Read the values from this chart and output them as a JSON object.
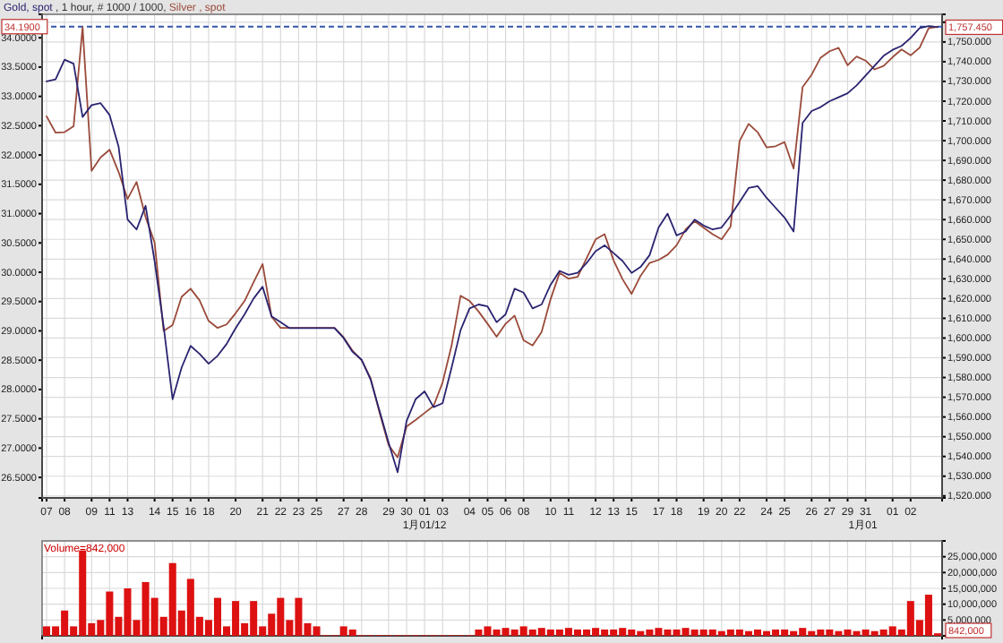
{
  "chart_data": [
    {
      "type": "line",
      "title": ", 1 hour, # 1000 / 1000,",
      "legend": "top left",
      "grid": true,
      "categories": [
        "07",
        null,
        "08",
        null,
        null,
        "09",
        null,
        "11",
        null,
        "13",
        null,
        null,
        "14",
        null,
        "15",
        null,
        "16",
        null,
        "18",
        null,
        null,
        "20",
        null,
        null,
        "21",
        null,
        "22",
        null,
        "23",
        null,
        "25",
        null,
        null,
        "27",
        null,
        "28",
        null,
        null,
        "29",
        null,
        "30",
        null,
        "01",
        null,
        "03",
        null,
        null,
        "04",
        null,
        "05",
        null,
        "06",
        null,
        "08",
        null,
        null,
        "10",
        null,
        "11",
        null,
        null,
        "12",
        null,
        "13",
        null,
        "15",
        null,
        null,
        "17",
        null,
        "18",
        null,
        null,
        "19",
        null,
        "20",
        null,
        "22",
        null,
        null,
        "24",
        null,
        "25",
        null,
        null,
        "26",
        null,
        "27",
        null,
        "29",
        null,
        "31",
        null,
        null,
        "01",
        null,
        "02",
        null,
        null,
        null
      ],
      "ylim": [
        26.15,
        34.4
      ],
      "y2lim": [
        1519,
        1764
      ],
      "yticks": [
        {
          "value": 26.5,
          "label": "26.5000"
        },
        {
          "value": 27,
          "label": "27.0000"
        },
        {
          "value": 27.5,
          "label": "27.5000"
        },
        {
          "value": 28,
          "label": "28.0000"
        },
        {
          "value": 28.5,
          "label": "28.5000"
        },
        {
          "value": 29,
          "label": "29.0000"
        },
        {
          "value": 29.5,
          "label": "29.5000"
        },
        {
          "value": 30,
          "label": "30.0000"
        },
        {
          "value": 30.5,
          "label": "30.5000"
        },
        {
          "value": 31,
          "label": "31.0000"
        },
        {
          "value": 31.5,
          "label": "31.5000"
        },
        {
          "value": 32,
          "label": "32.0000"
        },
        {
          "value": 32.5,
          "label": "32.5000"
        },
        {
          "value": 33,
          "label": "33.0000"
        },
        {
          "value": 33.5,
          "label": "33.5000"
        },
        {
          "value": 34,
          "label": "34.0000"
        }
      ],
      "y2ticks": [
        {
          "value": 1520,
          "label": "1,520.000"
        },
        {
          "value": 1530,
          "label": "1,530.000"
        },
        {
          "value": 1540,
          "label": "1,540.000"
        },
        {
          "value": 1550,
          "label": "1,550.000"
        },
        {
          "value": 1560,
          "label": "1,560.000"
        },
        {
          "value": 1570,
          "label": "1,570.000"
        },
        {
          "value": 1580,
          "label": "1,580.000"
        },
        {
          "value": 1590,
          "label": "1,590.000"
        },
        {
          "value": 1600,
          "label": "1,600.000"
        },
        {
          "value": 1610,
          "label": "1,610.000"
        },
        {
          "value": 1620,
          "label": "1,620.000"
        },
        {
          "value": 1630,
          "label": "1,630.000"
        },
        {
          "value": 1640,
          "label": "1,640.000"
        },
        {
          "value": 1650,
          "label": "1,650.000"
        },
        {
          "value": 1660,
          "label": "1,660.000"
        },
        {
          "value": 1670,
          "label": "1,670.000"
        },
        {
          "value": 1680,
          "label": "1,680.000"
        },
        {
          "value": 1690,
          "label": "1,690.000"
        },
        {
          "value": 1700,
          "label": "1,700.000"
        },
        {
          "value": 1710,
          "label": "1,710.000"
        },
        {
          "value": 1720,
          "label": "1,720.000"
        },
        {
          "value": 1730,
          "label": "1,730.000"
        },
        {
          "value": 1740,
          "label": "1,740.000"
        },
        {
          "value": 1750,
          "label": "1,750.000"
        },
        {
          "value": 1760,
          "label": null
        }
      ],
      "ref_lines": [
        {
          "axis": "y",
          "value": 34.19,
          "label": "34.1900",
          "color": "#3355aa",
          "line_style": "dashed"
        }
      ],
      "annotations": [
        "1月01/12",
        "1月01"
      ],
      "series": [
        {
          "name": "Silver , spot",
          "color": "#9a4a3a",
          "values": [
            32.66,
            32.38,
            32.39,
            32.49,
            34.18,
            31.73,
            31.96,
            32.09,
            31.71,
            31.25,
            31.54,
            30.94,
            30.51,
            29.0,
            29.1,
            29.58,
            29.72,
            29.52,
            29.17,
            29.05,
            29.11,
            29.3,
            29.51,
            29.83,
            30.14,
            29.24,
            29.05,
            29.05,
            29.05,
            29.05,
            29.05,
            29.05,
            29.05,
            28.89,
            28.66,
            28.5,
            28.19,
            27.6,
            27.05,
            26.84,
            27.37,
            27.48,
            27.6,
            27.72,
            28.12,
            28.75,
            29.6,
            29.51,
            29.33,
            29.12,
            28.9,
            29.12,
            29.26,
            28.84,
            28.75,
            28.98,
            29.54,
            29.99,
            29.89,
            29.92,
            30.24,
            30.56,
            30.65,
            30.2,
            29.88,
            29.63,
            29.94,
            30.16,
            30.21,
            30.3,
            30.46,
            30.73,
            30.87,
            30.76,
            30.65,
            30.56,
            30.78,
            32.24,
            32.53,
            32.39,
            32.13,
            32.15,
            32.22,
            31.77,
            33.16,
            33.37,
            33.66,
            33.77,
            33.83,
            33.53,
            33.68,
            33.61,
            33.46,
            33.52,
            33.67,
            33.8,
            33.7,
            33.83,
            34.16,
            34.19
          ]
        },
        {
          "name": "Gold, spot",
          "axis": "y2",
          "color": "#2a2470",
          "values": [
            1730,
            1731,
            1741,
            1739,
            1712,
            1718,
            1719,
            1713,
            1697,
            1660,
            1655,
            1667,
            1639,
            1606,
            1569,
            1585,
            1596,
            1592,
            1587,
            1591,
            1597,
            1605,
            1612,
            1620,
            1626,
            1611,
            1608,
            1605,
            1605,
            1605,
            1605,
            1605,
            1605,
            1600,
            1593,
            1589,
            1579,
            1563,
            1547,
            1532,
            1558,
            1569,
            1573,
            1565,
            1567,
            1585,
            1604,
            1615,
            1617,
            1616,
            1608,
            1612,
            1625,
            1623,
            1615,
            1617,
            1627,
            1634,
            1632,
            1633,
            1638,
            1644,
            1647,
            1643,
            1639,
            1633,
            1636,
            1642,
            1656,
            1663,
            1652,
            1654,
            1660,
            1657,
            1655,
            1656,
            1662,
            1669,
            1676,
            1677,
            1671,
            1666,
            1661,
            1654,
            1709,
            1715,
            1717,
            1720,
            1722,
            1724,
            1728,
            1733,
            1738,
            1743,
            1746,
            1748,
            1752,
            1757,
            1758,
            1757.45
          ],
          "value_labels": [
            null,
            null,
            null,
            null,
            null,
            null,
            null,
            null,
            null,
            null,
            null,
            null,
            null,
            null,
            null,
            null,
            null,
            null,
            null,
            null,
            null,
            null,
            null,
            null,
            null,
            null,
            null,
            null,
            null,
            null,
            null,
            null,
            null,
            null,
            null,
            null,
            null,
            null,
            null,
            null,
            null,
            null,
            null,
            null,
            null,
            null,
            null,
            null,
            null,
            null,
            null,
            null,
            null,
            null,
            null,
            null,
            null,
            null,
            null,
            null,
            null,
            null,
            null,
            null,
            null,
            null,
            null,
            null,
            null,
            null,
            null,
            null,
            null,
            null,
            null,
            null,
            null,
            null,
            null,
            null,
            null,
            null,
            null,
            null,
            null,
            null,
            null,
            null,
            null,
            null,
            null,
            null,
            null,
            null,
            null,
            null,
            null,
            null,
            null,
            "1,757.450"
          ]
        }
      ]
    },
    {
      "type": "bar",
      "title": "Volume=842,000",
      "grid": true,
      "tick_labels": "y",
      "categories": [
        "07",
        null,
        "08",
        null,
        null,
        "09",
        null,
        "11",
        null,
        "13",
        null,
        null,
        "14",
        null,
        "15",
        null,
        "16",
        null,
        "18",
        null,
        null,
        "20",
        null,
        null,
        "21",
        null,
        "22",
        null,
        "23",
        null,
        "25",
        null,
        null,
        "27",
        null,
        "28",
        null,
        null,
        "29",
        null,
        "30",
        null,
        "01",
        null,
        "03",
        null,
        null,
        "04",
        null,
        "05",
        null,
        "06",
        null,
        "08",
        null,
        null,
        "10",
        null,
        "11",
        null,
        null,
        "12",
        null,
        "13",
        null,
        "15",
        null,
        null,
        "17",
        null,
        "18",
        null,
        null,
        "19",
        null,
        "20",
        null,
        "22",
        null,
        null,
        "24",
        null,
        "25",
        null,
        null,
        "26",
        null,
        "27",
        null,
        "29",
        null,
        "31",
        null,
        null,
        "01",
        null,
        "02",
        null,
        null,
        null
      ],
      "ylim": [
        0,
        30000000
      ],
      "yticks": [
        {
          "value": 5000000,
          "label": "5,000,000"
        },
        {
          "value": 10000000,
          "label": "10,000,000"
        },
        {
          "value": 15000000,
          "label": "15,000,000"
        },
        {
          "value": 20000000,
          "label": "20,000,000"
        },
        {
          "value": 25000000,
          "label": "25,000,000"
        }
      ],
      "annotations": [
        "842,000"
      ],
      "series": [
        {
          "color": "#dd1111",
          "values": [
            3000000,
            3000000,
            8000000,
            3000000,
            27000000,
            4000000,
            5000000,
            14000000,
            6000000,
            15000000,
            5000000,
            17000000,
            12000000,
            6000000,
            23000000,
            8000000,
            18000000,
            6000000,
            5000000,
            12000000,
            3000000,
            11000000,
            4000000,
            11000000,
            3000000,
            7000000,
            12000000,
            5000000,
            12000000,
            4000000,
            3000000,
            200000,
            200000,
            3000000,
            2000000,
            200000,
            200000,
            200000,
            200000,
            200000,
            200000,
            200000,
            200000,
            200000,
            200000,
            200000,
            200000,
            200000,
            2000000,
            3000000,
            2000000,
            2500000,
            2000000,
            3000000,
            2000000,
            2500000,
            2000000,
            2000000,
            2500000,
            2000000,
            2000000,
            2500000,
            2000000,
            2000000,
            2500000,
            2000000,
            1500000,
            2000000,
            2500000,
            2000000,
            2000000,
            2500000,
            2000000,
            2000000,
            2000000,
            1500000,
            2000000,
            2000000,
            1500000,
            2000000,
            1500000,
            2000000,
            2000000,
            1500000,
            2500000,
            1500000,
            2000000,
            2000000,
            1500000,
            2000000,
            1500000,
            2000000,
            1500000,
            2000000,
            3000000,
            2000000,
            11000000,
            5000000,
            13000000,
            800000
          ]
        }
      ]
    }
  ]
}
